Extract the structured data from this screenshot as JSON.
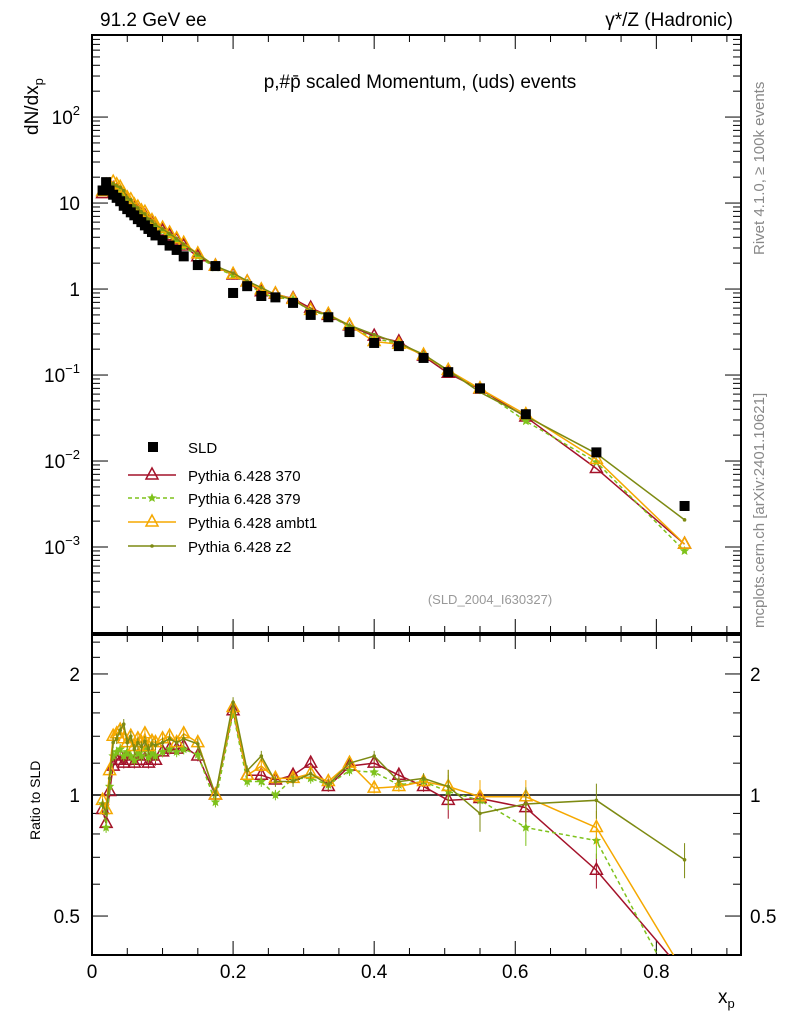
{
  "header": {
    "left": "91.2 GeV ee",
    "right": "γ*/Z (Hadronic)"
  },
  "side": {
    "rivet": "Rivet 4.1.0, ≥ 100k events",
    "mcplots": "mcplots.cern.ch [arXiv:2401.10621]"
  },
  "chart_data": {
    "type": "line",
    "title": "p,#p̄ scaled Momentum, (uds) events",
    "analysis": "(SLD_2004_I630327)",
    "ylabel": "dN/dx",
    "ylabel_sub": "p",
    "xlabel": "x",
    "xlabel_sub": "p",
    "ratio_ylabel": "Ratio to SLD",
    "xlim": [
      0,
      0.92
    ],
    "ylim": [
      0.0001,
      900
    ],
    "yscale": "log",
    "ratio_ylim": [
      0.4,
      2.5
    ],
    "xticks": [
      "0",
      "0.2",
      "0.4",
      "0.6",
      "0.8"
    ],
    "yticks": [
      {
        "v": 100,
        "base": "10",
        "exp": "2"
      },
      {
        "v": 10,
        "base": "10",
        "exp": ""
      },
      {
        "v": 1,
        "base": "1",
        "exp": ""
      },
      {
        "v": 0.1,
        "base": "10",
        "exp": "−1"
      },
      {
        "v": 0.01,
        "base": "10",
        "exp": "−2"
      },
      {
        "v": 0.001,
        "base": "10",
        "exp": "−3"
      }
    ],
    "ratio_yticks": [
      {
        "v": 2,
        "label": "2"
      },
      {
        "v": 1,
        "label": "1"
      },
      {
        "v": 0.5,
        "label": "0.5"
      }
    ],
    "legend_position": "bottom-left",
    "x": [
      0.015,
      0.02,
      0.025,
      0.03,
      0.035,
      0.04,
      0.045,
      0.05,
      0.055,
      0.06,
      0.065,
      0.07,
      0.075,
      0.08,
      0.085,
      0.09,
      0.1,
      0.11,
      0.12,
      0.13,
      0.15,
      0.175,
      0.2,
      0.22,
      0.24,
      0.26,
      0.285,
      0.31,
      0.335,
      0.365,
      0.4,
      0.435,
      0.47,
      0.505,
      0.55,
      0.615,
      0.715,
      0.84
    ],
    "data": {
      "name": "SLD",
      "color": "#000000",
      "values": [
        14,
        17.5,
        14,
        12.5,
        11.5,
        10.5,
        9.3,
        8.5,
        7.8,
        7.2,
        6.5,
        6.0,
        5.5,
        5.0,
        4.6,
        4.2,
        3.7,
        3.2,
        2.85,
        2.4,
        1.9,
        1.85,
        0.9,
        1.08,
        0.83,
        0.8,
        0.69,
        0.5,
        0.47,
        0.316,
        0.236,
        0.217,
        0.158,
        0.108,
        0.07,
        0.035,
        0.0126,
        0.003
      ]
    },
    "series": [
      {
        "name": "Pythia 6.428 370",
        "color": "#a4122a",
        "marker": "triangle-open",
        "dash": "",
        "ratio": [
          0.92,
          0.85,
          1.02,
          1.18,
          1.22,
          1.25,
          1.2,
          1.25,
          1.22,
          1.2,
          1.25,
          1.22,
          1.28,
          1.2,
          1.25,
          1.22,
          1.28,
          1.3,
          1.3,
          1.32,
          1.25,
          1.0,
          1.62,
          1.12,
          1.12,
          1.09,
          1.12,
          1.2,
          1.05,
          1.18,
          1.2,
          1.12,
          1.05,
          0.97,
          0.98,
          0.93,
          0.65,
          0.36
        ]
      },
      {
        "name": "Pythia 6.428 379",
        "color": "#7ec21b",
        "marker": "star",
        "dash": "4,3",
        "ratio": [
          0.95,
          0.83,
          1.05,
          1.25,
          1.28,
          1.3,
          1.25,
          1.28,
          1.25,
          1.22,
          1.27,
          1.25,
          1.3,
          1.24,
          1.27,
          1.25,
          1.28,
          1.3,
          1.28,
          1.3,
          1.26,
          0.96,
          1.6,
          1.08,
          1.08,
          1.0,
          1.1,
          1.1,
          1.06,
          1.15,
          1.14,
          1.06,
          1.08,
          1.02,
          0.97,
          0.83,
          0.77,
          0.3
        ]
      },
      {
        "name": "Pythia 6.428 ambt1",
        "color": "#f5a800",
        "marker": "triangle-open",
        "dash": "",
        "ratio": [
          0.97,
          0.92,
          1.15,
          1.4,
          1.42,
          1.45,
          1.38,
          1.35,
          1.4,
          1.32,
          1.38,
          1.35,
          1.42,
          1.32,
          1.36,
          1.35,
          1.38,
          1.4,
          1.35,
          1.42,
          1.35,
          1.0,
          1.65,
          1.12,
          1.18,
          1.1,
          1.1,
          1.13,
          1.08,
          1.2,
          1.04,
          1.05,
          1.08,
          1.05,
          0.99,
          0.99,
          0.83,
          0.36
        ]
      },
      {
        "name": "Pythia 6.428 z2",
        "color": "#7d8a12",
        "marker": "dot",
        "dash": "",
        "ratio": [
          0.95,
          0.9,
          1.1,
          1.35,
          1.38,
          1.45,
          1.5,
          1.35,
          1.4,
          1.3,
          1.35,
          1.32,
          1.36,
          1.3,
          1.34,
          1.33,
          1.35,
          1.38,
          1.35,
          1.38,
          1.34,
          1.0,
          1.7,
          1.15,
          1.25,
          1.08,
          1.08,
          1.13,
          1.06,
          1.2,
          1.25,
          1.08,
          1.1,
          1.05,
          0.9,
          0.95,
          0.97,
          0.69
        ]
      }
    ]
  }
}
